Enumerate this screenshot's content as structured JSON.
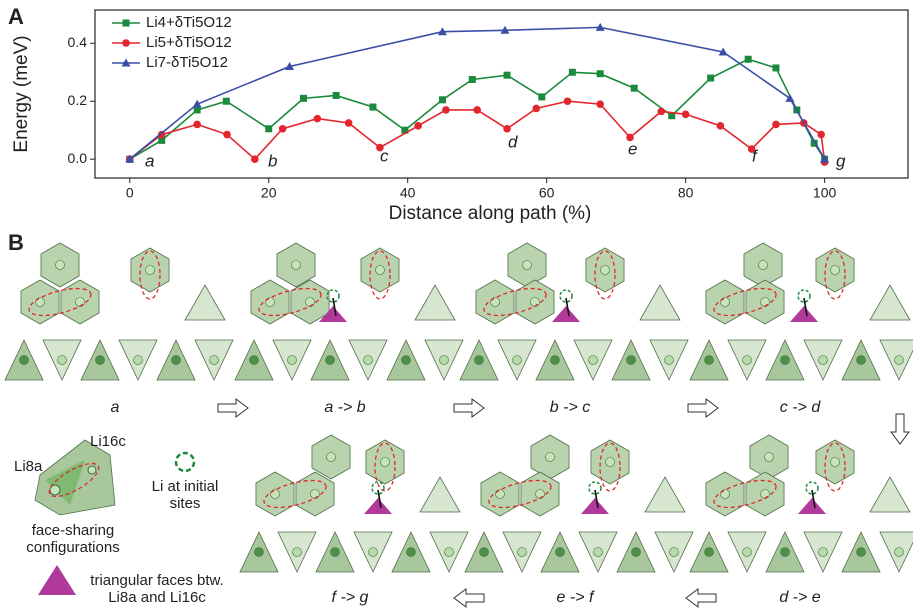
{
  "chart_data": {
    "type": "line",
    "y_label": "Energy (meV)",
    "x_label": "Distance along path (%)",
    "xlim": [
      -5,
      112
    ],
    "xticks": [
      0,
      20,
      40,
      60,
      80,
      100
    ],
    "ylim": [
      -0.065,
      0.515
    ],
    "yticks": [
      {
        "value": 0,
        "label": "0.0"
      },
      0.2,
      0.4
    ],
    "legend": "upper left",
    "annotations": [
      "a",
      "b",
      "c",
      "d",
      "e",
      "f",
      "g"
    ],
    "series": [
      {
        "name": "Li4+δTi5O12",
        "color": "#1b8a3c",
        "marker": "square",
        "x": [
          0,
          4.6,
          9.7,
          13.9,
          20,
          25,
          29.7,
          35,
          39.6,
          45,
          49.3,
          54.3,
          59.3,
          63.7,
          67.7,
          72.6,
          78,
          83.6,
          89,
          93,
          96,
          98.5,
          100
        ],
        "values": [
          0,
          0.065,
          0.17,
          0.2,
          0.105,
          0.21,
          0.22,
          0.18,
          0.1,
          0.205,
          0.275,
          0.29,
          0.215,
          0.3,
          0.295,
          0.245,
          0.15,
          0.28,
          0.345,
          0.315,
          0.17,
          0.055,
          0
        ]
      },
      {
        "name": "Li5+δTi5O12",
        "color": "#e3262d",
        "marker": "circle",
        "x": [
          0,
          4.6,
          9.7,
          14,
          18,
          22,
          27,
          31.5,
          36,
          41.5,
          45.5,
          50,
          54.3,
          58.5,
          63,
          67.7,
          72,
          76.5,
          80,
          85,
          89.5,
          93,
          97,
          99.5,
          100
        ],
        "values": [
          0,
          0.085,
          0.12,
          0.085,
          0,
          0.105,
          0.14,
          0.125,
          0.04,
          0.115,
          0.17,
          0.17,
          0.105,
          0.175,
          0.2,
          0.19,
          0.075,
          0.165,
          0.155,
          0.115,
          0.035,
          0.12,
          0.125,
          0.085,
          -0.01
        ]
      },
      {
        "name": "Li7-δTi5O12",
        "color": "#3b4ea6",
        "marker": "triangle",
        "x": [
          0,
          9.7,
          23,
          45,
          54,
          67.7,
          85.4,
          95,
          100
        ],
        "values": [
          0,
          0.19,
          0.32,
          0.44,
          0.445,
          0.455,
          0.37,
          0.21,
          0
        ]
      }
    ]
  },
  "panel_labels": [
    "A",
    "B"
  ],
  "panel_b": {
    "steps": [
      "a",
      "a -> b",
      "b -> c",
      "c -> d",
      "d -> e",
      "e -> f",
      "f -> g"
    ],
    "legend": {
      "site_8a": "Li8a",
      "site_16c": "Li16c",
      "face_sharing": "face-sharing configurations",
      "initial_sites": "Li at initial sites",
      "triangular_faces": "triangular faces btw. Li8a and Li16c"
    }
  }
}
